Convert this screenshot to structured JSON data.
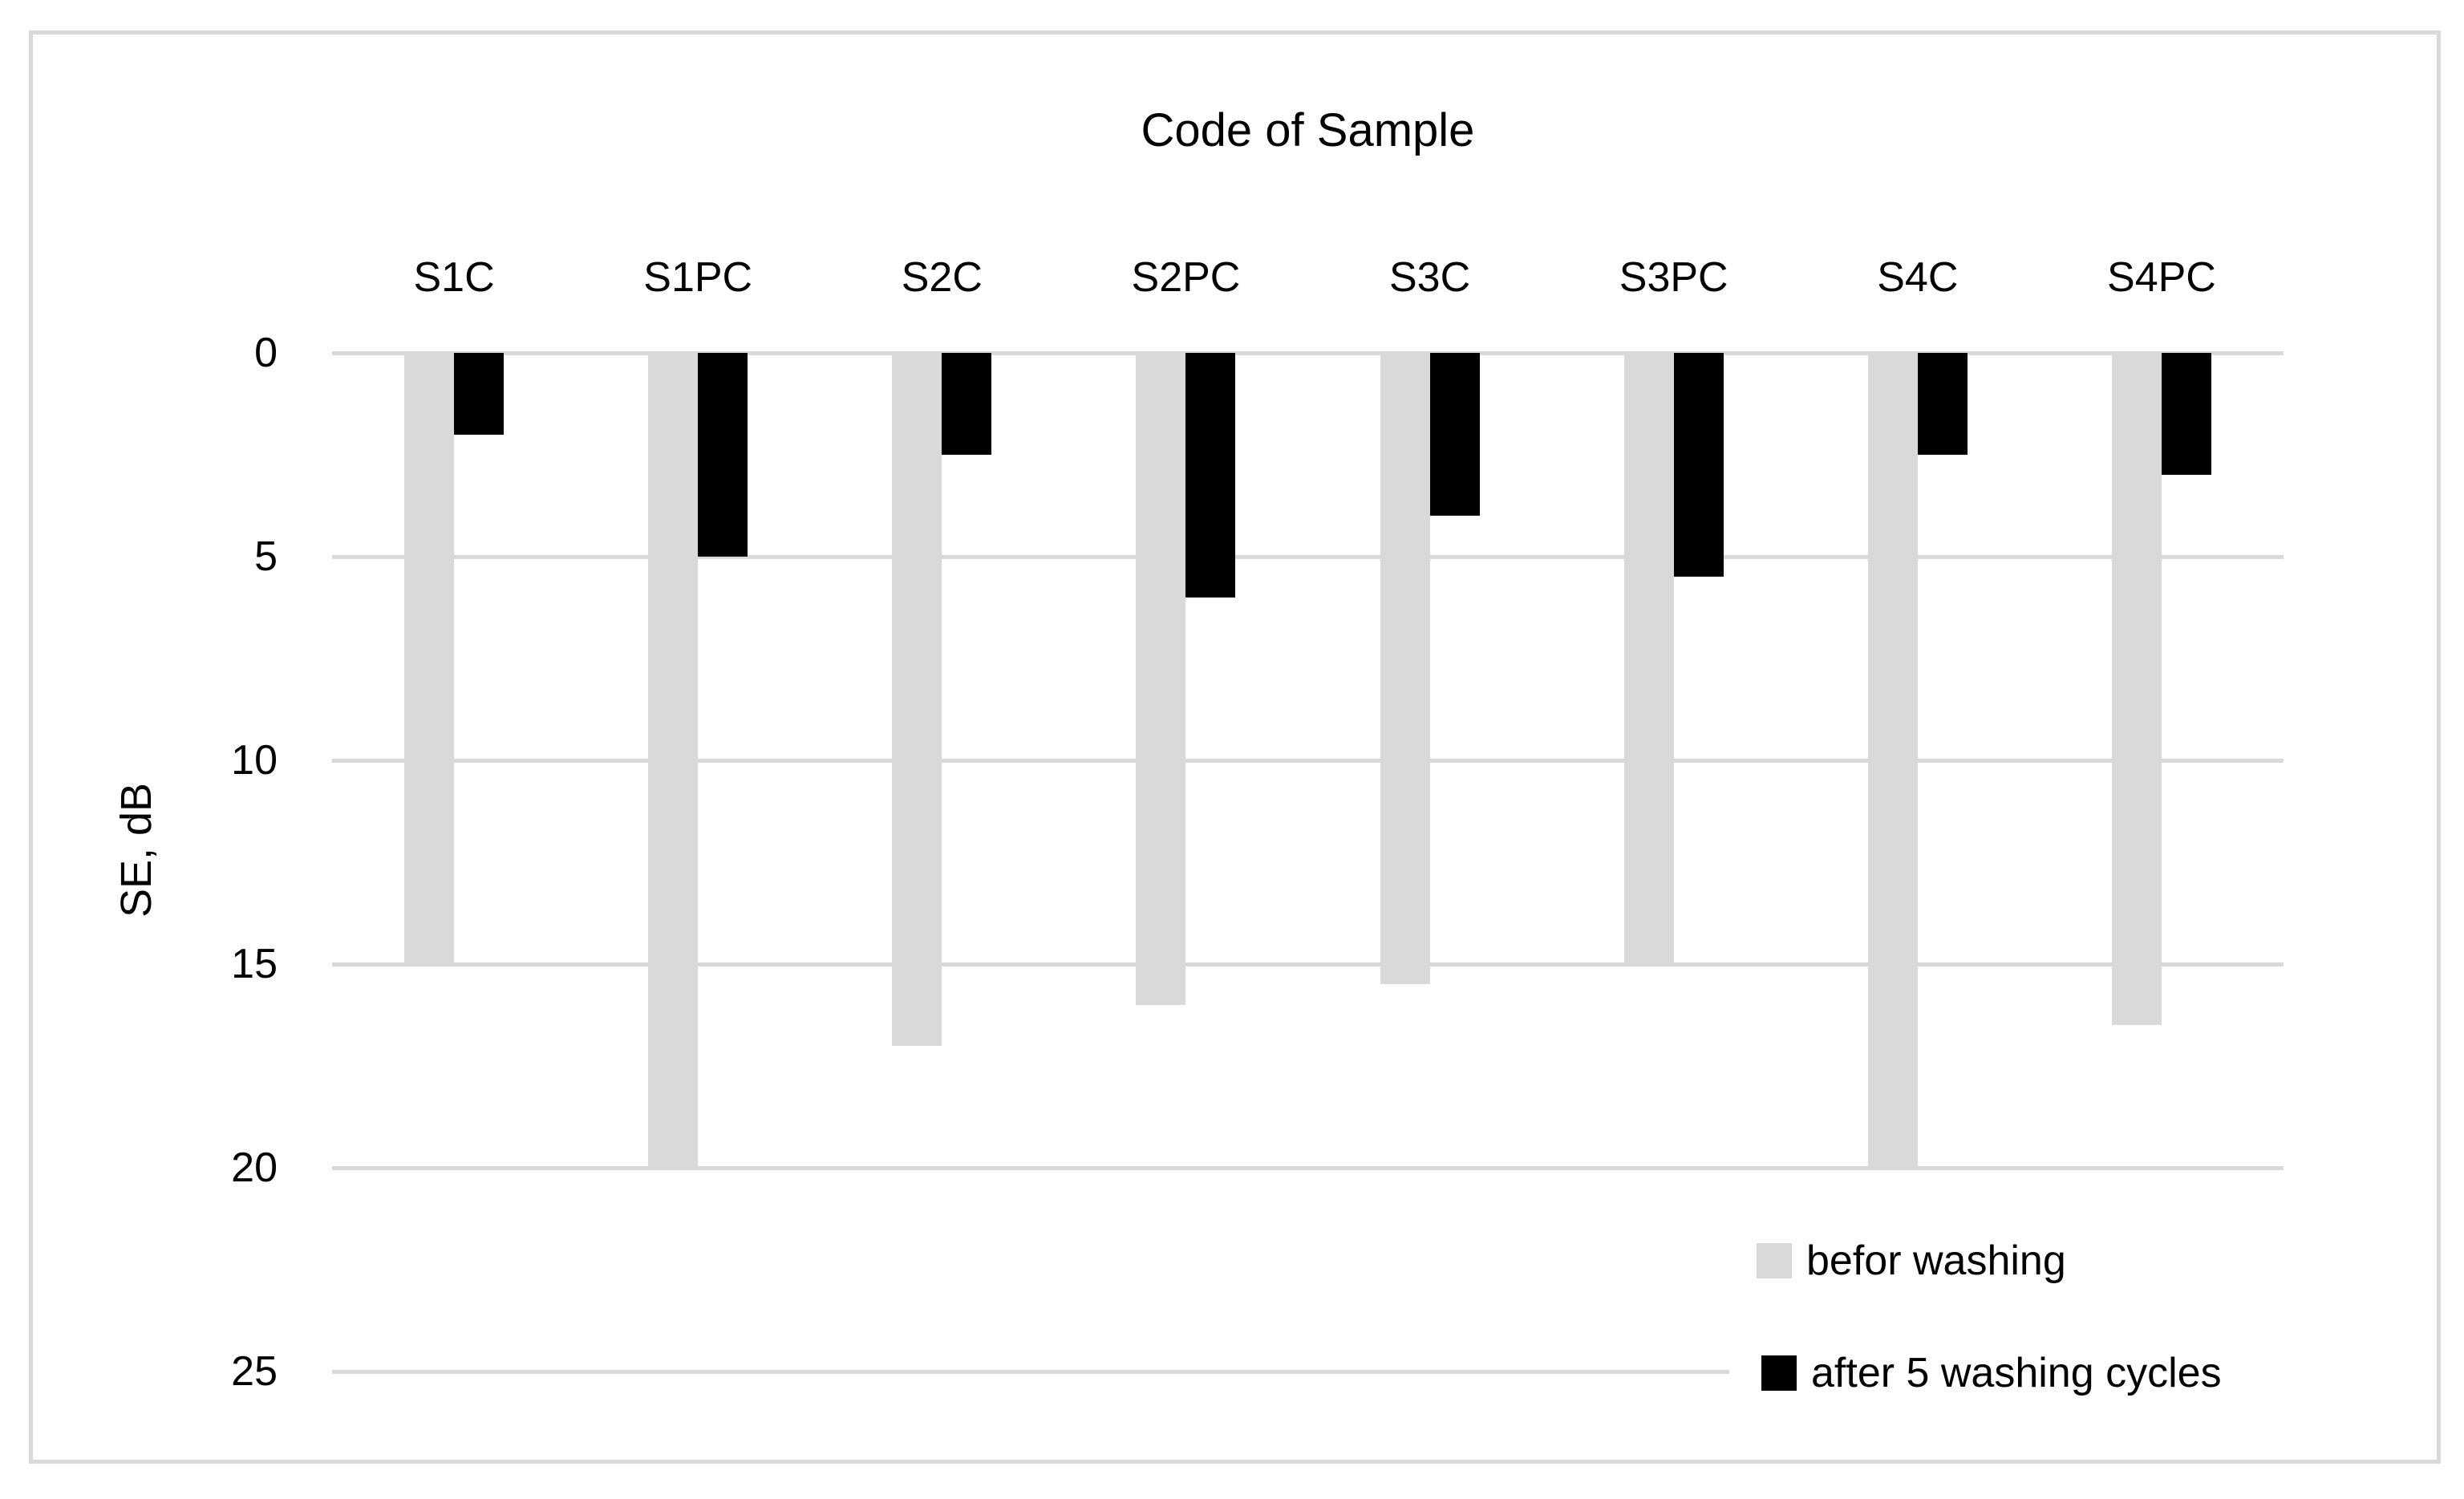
{
  "chart_data": {
    "type": "bar",
    "title": "Code of Sample",
    "ylabel": "SE, dB",
    "categories": [
      "S1C",
      "S1PC",
      "S2C",
      "S2PC",
      "S3C",
      "S3PC",
      "S4C",
      "S4PC"
    ],
    "series": [
      {
        "name": "befor washing",
        "color": "#d9d9d9",
        "values": [
          15,
          20,
          17,
          16,
          15.5,
          15,
          20,
          16.5
        ]
      },
      {
        "name": "after 5 washing cycles",
        "color": "#000000",
        "values": [
          2,
          5,
          2.5,
          6,
          4,
          5.5,
          2.5,
          3
        ]
      }
    ],
    "ylim": [
      0,
      25
    ],
    "yticks": [
      0,
      5,
      10,
      15,
      20,
      25
    ],
    "axis_reversed": true,
    "bars_direction": "downward",
    "grid": true,
    "gridline_color": "#d9d9d9",
    "text_color": "#000000",
    "background_color": "#ffffff",
    "border_color": "#d9d9d9",
    "legend_position": "inside-bottom-right"
  }
}
